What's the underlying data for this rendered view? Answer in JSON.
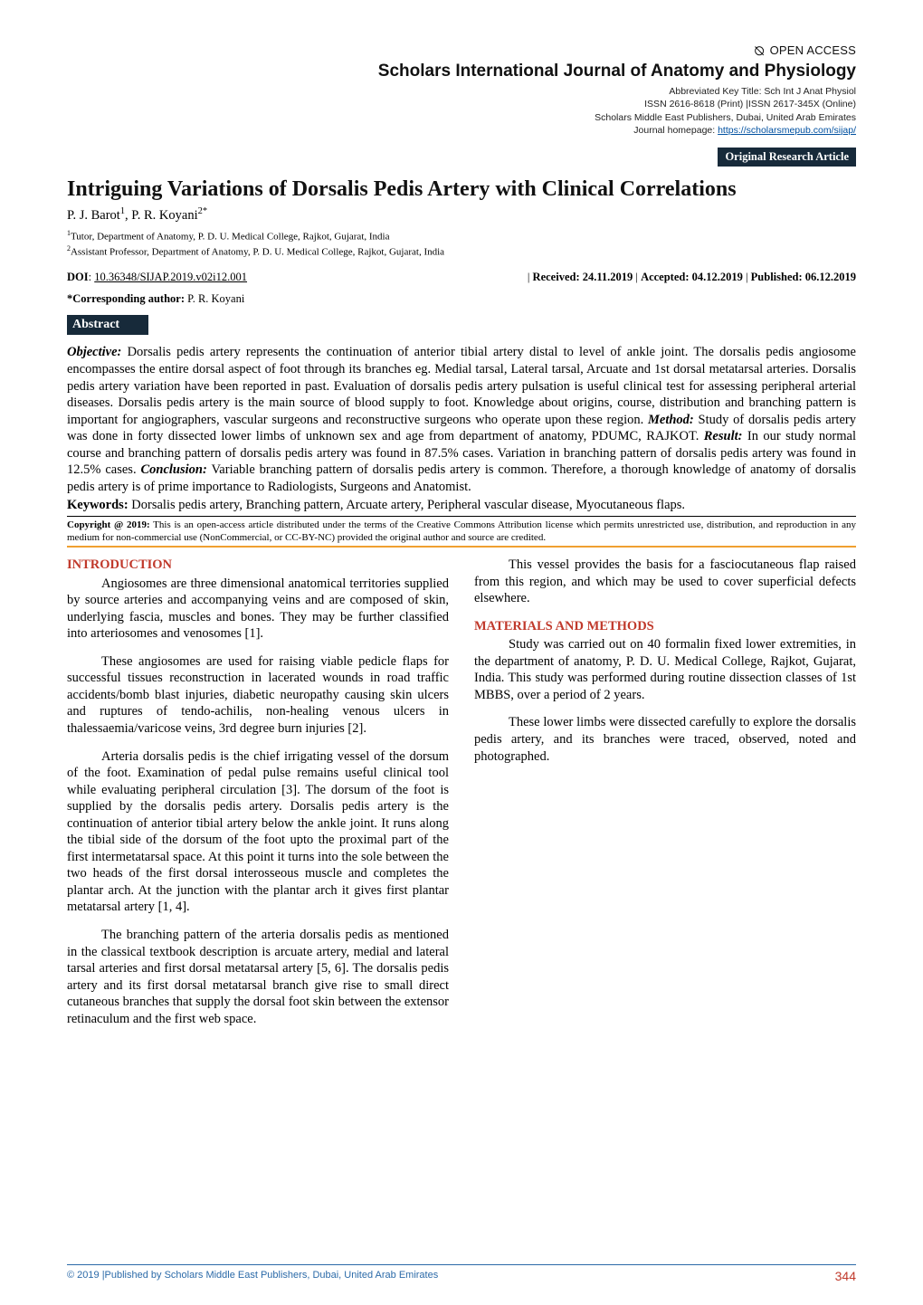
{
  "header": {
    "open_access_icon": "⦰",
    "open_access_text": "OPEN ACCESS",
    "journal_title": "Scholars International Journal of Anatomy and Physiology",
    "abbrev": "Abbreviated Key Title: Sch Int J Anat Physiol",
    "issn": "ISSN 2616-8618 (Print) |ISSN 2617-345X (Online)",
    "publisher": "Scholars Middle East Publishers, Dubai, United Arab Emirates",
    "homepage_label": "Journal homepage: ",
    "homepage_url": "https://scholarsmepub.com/sijap/",
    "original_badge": "Original Research Article"
  },
  "article": {
    "title": "Intriguing Variations of Dorsalis Pedis Artery with Clinical Correlations",
    "authors_html": "P. J. Barot<sup>1</sup>, P. R. Koyani<sup>2*</sup>",
    "affiliations": [
      "1Tutor, Department of Anatomy, P. D. U. Medical College, Rajkot, Gujarat, India",
      "2Assistant Professor, Department of Anatomy, P. D. U. Medical College, Rajkot, Gujarat, India"
    ],
    "doi_label": "DOI",
    "doi": "10.36348/SIJAP.2019.v02i12.001",
    "received": "Received: 24.11.2019",
    "accepted": "Accepted: 04.12.2019",
    "published": "Published: 06.12.2019",
    "corresponding_label": "*Corresponding author:",
    "corresponding_name": "P. R. Koyani",
    "abstract_heading": "Abstract",
    "abstract": {
      "objective_label": "Objective:",
      "objective_text": " Dorsalis pedis artery represents the continuation of anterior tibial artery distal to level of ankle joint. The dorsalis pedis angiosome encompasses the entire dorsal aspect of foot through its branches eg. Medial tarsal, Lateral tarsal, Arcuate and 1st dorsal metatarsal arteries. Dorsalis pedis artery variation have been reported in past. Evaluation of dorsalis pedis artery pulsation is useful clinical test for assessing peripheral arterial diseases. Dorsalis pedis artery is the main source of blood supply to foot. Knowledge about origins, course, distribution and branching pattern is important for angiographers, vascular surgeons and reconstructive surgeons who operate upon these region. ",
      "method_label": "Method:",
      "method_text": " Study of dorsalis pedis artery was done in forty dissected lower limbs of unknown sex and age from department of anatomy, PDUMC, RAJKOT. ",
      "result_label": "Result:",
      "result_text": " In our study normal course and branching pattern of dorsalis pedis artery was found in 87.5% cases. Variation in branching pattern of dorsalis pedis artery was found in 12.5% cases. ",
      "conclusion_label": "Conclusion:",
      "conclusion_text": " Variable branching pattern of dorsalis pedis artery is common. Therefore, a thorough knowledge of anatomy of dorsalis pedis artery is of prime importance to Radiologists, Surgeons and Anatomist."
    },
    "keywords_label": "Keywords:",
    "keywords": " Dorsalis pedis artery, Branching pattern, Arcuate artery, Peripheral vascular disease, Myocutaneous flaps.",
    "copyright_label": "Copyright @ 2019:",
    "copyright": " This is an open-access article distributed under the terms of the Creative Commons Attribution license which permits unrestricted use, distribution, and reproduction in any medium for non-commercial use (NonCommercial, or CC-BY-NC) provided the original author and source are credited."
  },
  "body": {
    "sec1_heading": "INTRODUCTION",
    "p1": "Angiosomes are three dimensional anatomical territories supplied by source arteries and accompanying veins and are composed of skin, underlying fascia, muscles and bones. They may be further classified into arteriosomes and venosomes [1].",
    "p2": "These angiosomes are used for raising viable pedicle flaps for successful tissues reconstruction in lacerated wounds in road traffic accidents/bomb blast injuries, diabetic neuropathy causing skin ulcers and ruptures of tendo-achilis, non-healing venous ulcers in thalessaemia/varicose veins, 3rd degree burn injuries [2].",
    "p3": "Arteria dorsalis pedis is the chief irrigating vessel of the dorsum of the foot. Examination of pedal pulse remains useful clinical tool while evaluating peripheral circulation [3]. The dorsum of the foot is supplied by the dorsalis pedis artery. Dorsalis pedis artery is the continuation of anterior tibial artery below the ankle joint. It runs along the tibial side of the dorsum of the foot upto the proximal part of the first intermetatarsal space. At this point it turns into the sole between the two heads of the first dorsal interosseous muscle and completes the plantar arch. At the junction with the plantar arch it gives first plantar metatarsal artery [1, 4].",
    "p4": "The branching pattern of the arteria dorsalis pedis as mentioned in the classical textbook description is arcuate artery, medial and lateral tarsal arteries and first dorsal metatarsal artery [5, 6]. The dorsalis pedis artery and its first dorsal metatarsal branch give rise to small direct cutaneous branches that supply the dorsal foot skin between the extensor retinaculum and the first web space.",
    "p5": "This vessel provides the basis for a fasciocutaneous flap raised from this region, and which may be used to cover superficial defects elsewhere.",
    "sec2_heading": "MATERIALS AND METHODS",
    "p6": "Study was carried out on 40 formalin fixed lower extremities, in the department of anatomy, P. D. U. Medical College, Rajkot, Gujarat, India. This study was performed during routine dissection classes of 1st MBBS, over a period of 2 years.",
    "p7": "These lower limbs were dissected carefully to explore the dorsalis pedis artery, and its branches were traced, observed, noted and photographed."
  },
  "footer": {
    "left": "© 2019 |Published by Scholars Middle East Publishers, Dubai, United Arab Emirates",
    "page": "344"
  },
  "colors": {
    "badge_bg": "#172a3a",
    "heading_red": "#c0392b",
    "rule_orange": "#f0a030",
    "footer_blue": "#2b6aa8",
    "link_blue": "#0050a0"
  }
}
